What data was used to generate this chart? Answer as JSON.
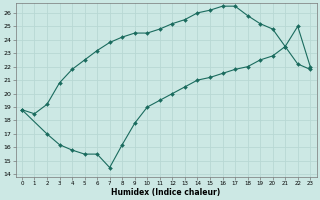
{
  "xlabel": "Humidex (Indice chaleur)",
  "xlim": [
    -0.5,
    23.5
  ],
  "ylim": [
    13.8,
    26.7
  ],
  "yticks": [
    14,
    15,
    16,
    17,
    18,
    19,
    20,
    21,
    22,
    23,
    24,
    25,
    26
  ],
  "xticks": [
    0,
    1,
    2,
    3,
    4,
    5,
    6,
    7,
    8,
    9,
    10,
    11,
    12,
    13,
    14,
    15,
    16,
    17,
    18,
    19,
    20,
    21,
    22,
    23
  ],
  "bg_color": "#cce8e4",
  "grid_color": "#b8d8d4",
  "line_color": "#1a6b5e",
  "curve1_x": [
    0,
    1,
    2,
    3,
    4,
    5,
    6,
    7,
    8,
    9,
    10,
    11,
    12,
    13,
    14,
    15,
    16,
    17,
    18,
    19,
    20,
    21,
    22,
    23
  ],
  "curve1_y": [
    18.8,
    18.5,
    19.2,
    20.8,
    21.8,
    22.5,
    23.2,
    23.8,
    24.2,
    24.5,
    24.5,
    24.8,
    25.2,
    25.5,
    26.0,
    26.2,
    26.5,
    26.5,
    25.8,
    25.2,
    24.8,
    23.5,
    22.2,
    21.8
  ],
  "curve2_x": [
    0,
    2,
    3,
    4,
    5,
    6,
    7,
    8,
    9,
    10,
    11,
    12,
    13,
    14,
    15,
    16,
    17,
    18,
    19,
    20,
    21,
    22,
    23
  ],
  "curve2_y": [
    18.8,
    17.0,
    16.2,
    15.8,
    15.5,
    15.5,
    14.5,
    16.2,
    17.8,
    19.0,
    19.5,
    20.0,
    20.5,
    21.0,
    21.2,
    21.5,
    21.8,
    22.0,
    22.5,
    22.8,
    23.5,
    25.0,
    22.0
  ]
}
